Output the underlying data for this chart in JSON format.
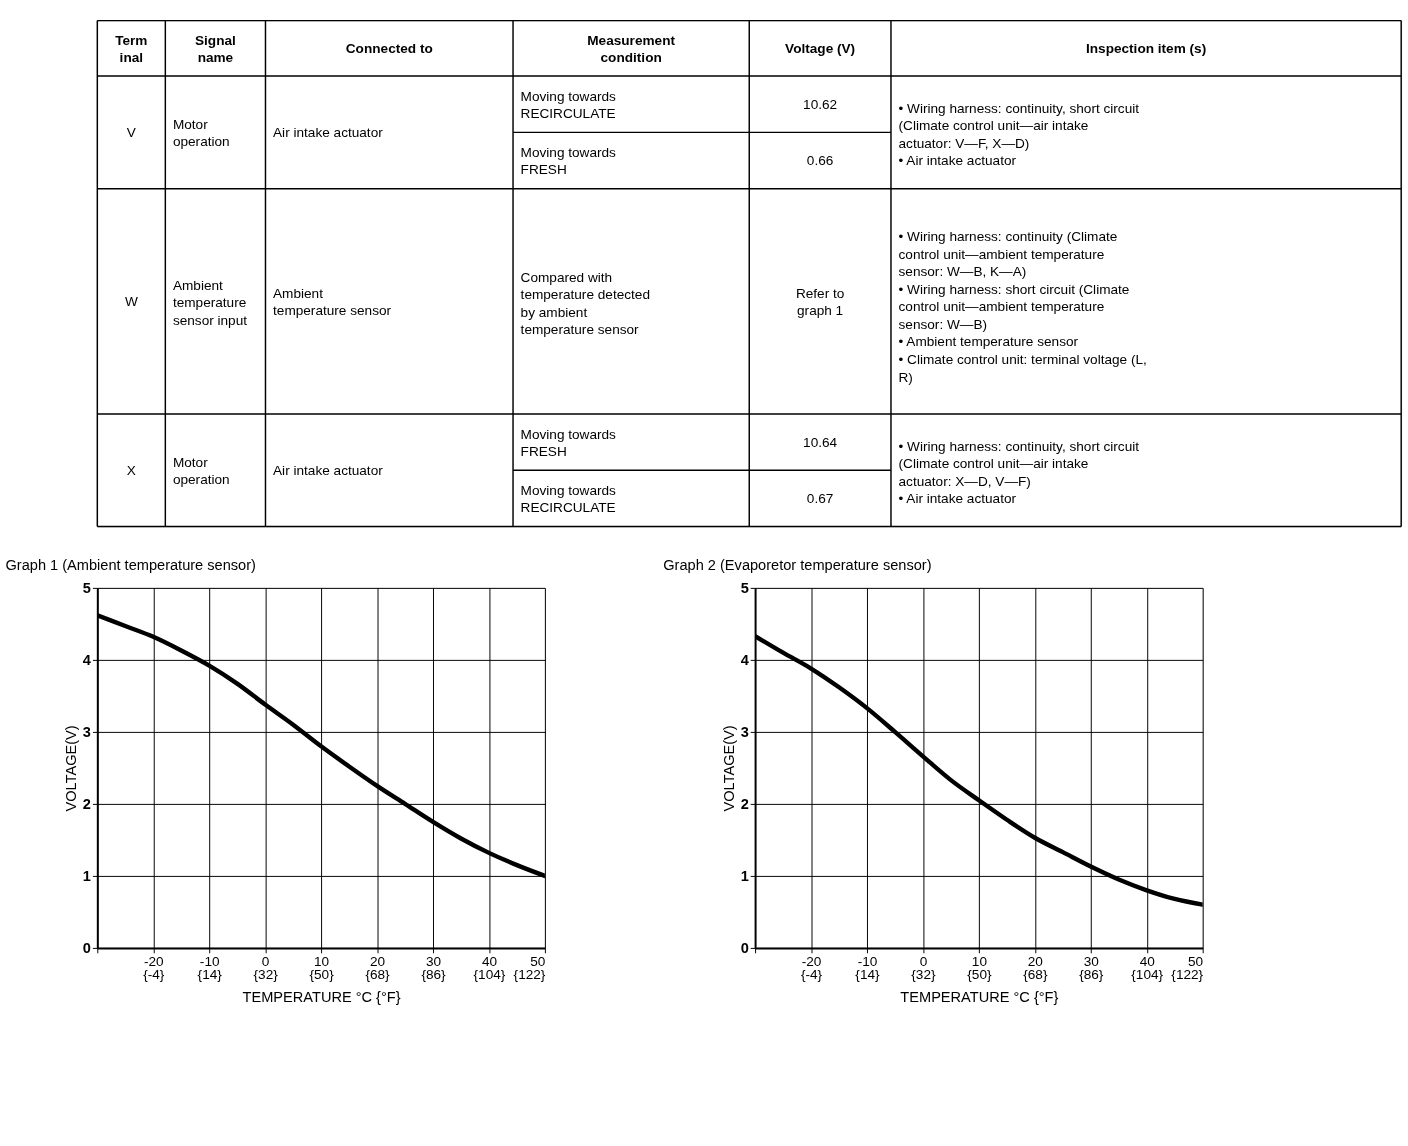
{
  "chart_data": [
    {
      "type": "other",
      "annotations": [
        "Term\ninal",
        "Signal\nname",
        "Connected to",
        "Measurement\ncondition",
        "Voltage (V)",
        "Inspection item (s)",
        "V",
        "Motor\noperation",
        "Air intake actuator",
        "Moving towards\nRECIRCULATE",
        "10.62",
        "Moving towards\nFRESH",
        "0.66",
        "•  Wiring harness: continuity, short circuit\n    (Climate control unit—air intake\n    actuator: V—F, X—D)\n•  Air intake actuator",
        "W",
        "Ambient\ntemperature\nsensor input",
        "Ambient\ntemperature sensor",
        "Compared with\ntemperature detected\nby ambient\ntemperature sensor",
        "Refer to\ngraph 1",
        "•  Wiring harness: continuity (Climate\n    control unit—ambient temperature\n    sensor: W—B, K—A)\n•  Wiring harness: short circuit (Climate\n    control unit—ambient temperature\n    sensor: W—B)\n•  Ambient temperature sensor\n•  Climate control unit: terminal voltage (L,\n    R)",
        "X",
        "Motor\noperation",
        "Air intake actuator",
        "Moving towards\nFRESH",
        "10.64",
        "Moving towards\nRECIRCULATE",
        "0.67",
        "•  Wiring harness: continuity, short circuit\n    (Climate control unit—air intake\n    actuator: X—D, V—F)\n•  Air intake actuator"
      ]
    },
    {
      "type": "line",
      "title": "Graph 1 (Ambient temperature sensor)",
      "xlabel": "TEMPERATURE °C {°F}",
      "ylabel": "VOLTAGE(V)",
      "x": [
        -30,
        -25,
        -20,
        -15,
        -10,
        -5,
        0,
        5,
        10,
        15,
        20,
        25,
        30,
        35,
        40,
        45,
        50
      ],
      "series": [
        {
          "color": "#000000",
          "values": [
            4.62,
            4.47,
            4.32,
            4.13,
            3.92,
            3.67,
            3.38,
            3.1,
            2.8,
            2.52,
            2.25,
            2.0,
            1.75,
            1.52,
            1.32,
            1.15,
            1.0
          ]
        }
      ],
      "xlim": [
        -30,
        50
      ],
      "xticks": [
        {
          "value": -30,
          "label": null
        },
        -20,
        -10,
        0,
        10,
        20,
        30,
        40,
        50
      ],
      "x2lim": [
        -22,
        122
      ],
      "x2ticks": [
        {
          "value": -4,
          "label": "{-4}"
        },
        {
          "value": 14,
          "label": "{14}"
        },
        {
          "value": 32,
          "label": "{32}"
        },
        {
          "value": 50,
          "label": "{50}"
        },
        {
          "value": 68,
          "label": "{68}"
        },
        {
          "value": 86,
          "label": "{86}"
        },
        {
          "value": 104,
          "label": "{104}"
        },
        {
          "value": 122,
          "label": "{122}"
        }
      ],
      "ylim": [
        0,
        5
      ],
      "yticks": [
        0,
        1,
        2,
        3,
        4,
        5
      ],
      "grid": true,
      "marker": "none",
      "line_style": "solid"
    },
    {
      "type": "line",
      "title": "Graph 2 (Evaporetor temperature sensor)",
      "xlabel": "TEMPERATURE °C {°F}",
      "ylabel": "VOLTAGE(V)",
      "x": [
        -30,
        -25,
        -20,
        -15,
        -10,
        -5,
        0,
        5,
        10,
        15,
        20,
        25,
        30,
        35,
        40,
        45,
        50
      ],
      "series": [
        {
          "color": "#000000",
          "values": [
            4.33,
            4.1,
            3.88,
            3.62,
            3.33,
            3.0,
            2.66,
            2.33,
            2.05,
            1.78,
            1.53,
            1.33,
            1.13,
            0.95,
            0.8,
            0.68,
            0.6
          ]
        }
      ],
      "xlim": [
        -30,
        50
      ],
      "xticks": [
        {
          "value": -30,
          "label": null
        },
        -20,
        -10,
        0,
        10,
        20,
        30,
        40,
        50
      ],
      "x2lim": [
        -22,
        122
      ],
      "x2ticks": [
        {
          "value": -4,
          "label": "{-4}"
        },
        {
          "value": 14,
          "label": "{14}"
        },
        {
          "value": 32,
          "label": "{32}"
        },
        {
          "value": 50,
          "label": "{50}"
        },
        {
          "value": 68,
          "label": "{68}"
        },
        {
          "value": 86,
          "label": "{86}"
        },
        {
          "value": 104,
          "label": "{104}"
        },
        {
          "value": 122,
          "label": "{122}"
        }
      ],
      "ylim": [
        0,
        5
      ],
      "yticks": [
        0,
        1,
        2,
        3,
        4,
        5
      ],
      "grid": true,
      "marker": "none",
      "line_style": "solid"
    }
  ]
}
